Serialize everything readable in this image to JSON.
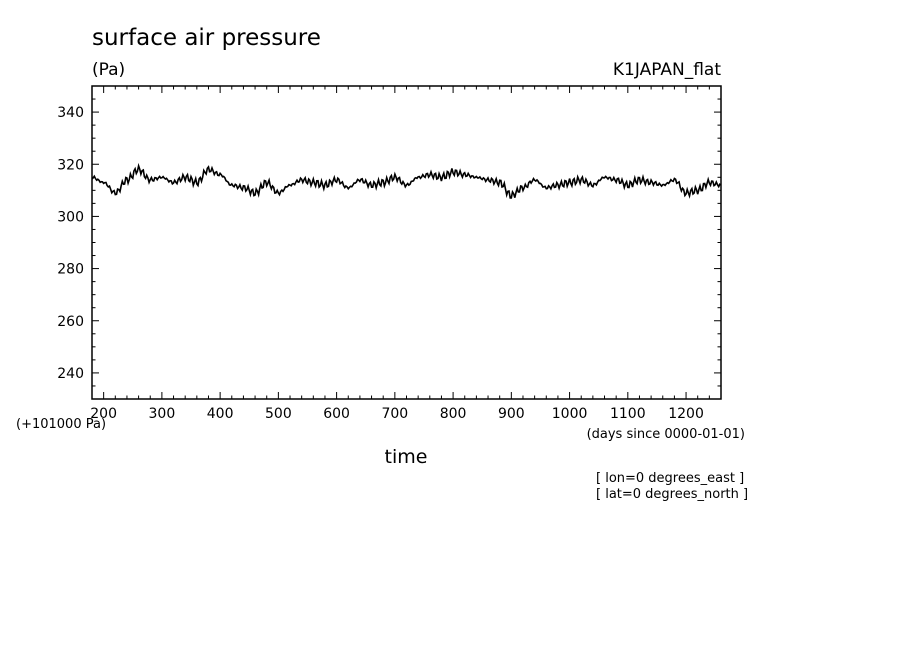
{
  "chart_data": {
    "type": "line",
    "title": "surface air pressure",
    "units": "(Pa)",
    "subtitle": "K1JAPAN_flat",
    "xlabel": "time",
    "x_units": "(days since 0000-01-01)",
    "y_offset_label": "(+101000 Pa)",
    "y_offset": 101000,
    "notes": [
      "[ lon=0 degrees_east ]",
      "[ lat=0 degrees_north ]"
    ],
    "xlim": [
      180,
      1260
    ],
    "ylim": [
      230,
      350
    ],
    "xticks": [
      200,
      300,
      400,
      500,
      600,
      700,
      800,
      900,
      1000,
      1100,
      1200
    ],
    "yticks": [
      240,
      260,
      280,
      300,
      320,
      340
    ],
    "grid": false,
    "series": [
      {
        "color": "#000000",
        "x": [
          180,
          200,
          220,
          240,
          260,
          280,
          300,
          320,
          340,
          360,
          380,
          400,
          420,
          440,
          460,
          480,
          500,
          520,
          540,
          560,
          580,
          600,
          620,
          640,
          660,
          680,
          700,
          720,
          740,
          760,
          780,
          800,
          820,
          840,
          860,
          880,
          900,
          920,
          940,
          960,
          980,
          1000,
          1020,
          1040,
          1060,
          1080,
          1100,
          1120,
          1140,
          1160,
          1180,
          1200,
          1220,
          1240,
          1260
        ],
        "y": [
          315,
          313,
          309,
          314,
          318,
          314,
          315,
          313,
          315,
          313,
          318,
          316,
          312,
          311,
          309,
          313,
          309,
          312,
          314,
          313,
          312,
          314,
          311,
          314,
          312,
          313,
          315,
          312,
          315,
          316,
          315,
          317,
          316,
          315,
          314,
          313,
          308,
          311,
          314,
          311,
          312,
          313,
          314,
          312,
          315,
          314,
          312,
          314,
          313,
          312,
          314,
          309,
          310,
          313,
          312
        ]
      }
    ]
  }
}
